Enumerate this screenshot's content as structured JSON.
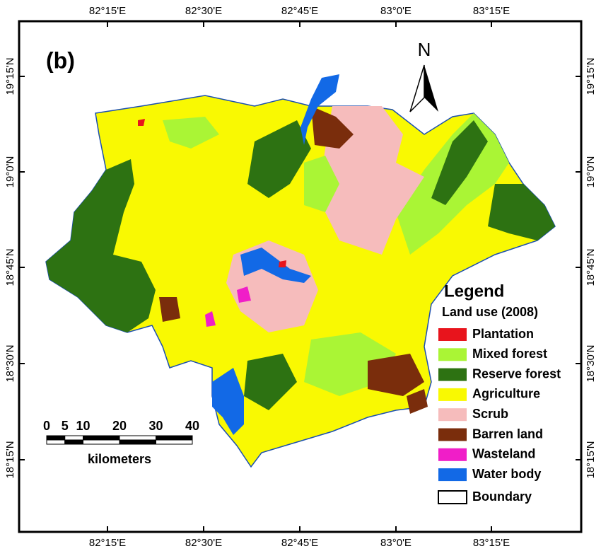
{
  "map": {
    "panel_label": "(b)",
    "north_label": "N",
    "lon_labels": [
      "82°15'E",
      "82°30'E",
      "82°45'E",
      "83°0'E",
      "83°15'E"
    ],
    "lat_labels": [
      "19°15'N",
      "19°0'N",
      "18°45'N",
      "18°30'N",
      "18°15'N"
    ],
    "legend": {
      "title": "Legend",
      "subtitle": "Land use (2008)",
      "items": [
        {
          "label": "Plantation",
          "color": "#e8141c"
        },
        {
          "label": "Mixed forest",
          "color": "#aaf535"
        },
        {
          "label": "Reserve forest",
          "color": "#2d7212"
        },
        {
          "label": "Agriculture",
          "color": "#f9f902"
        },
        {
          "label": "Scrub",
          "color": "#f6bcbc"
        },
        {
          "label": "Barren land",
          "color": "#7a2d0c"
        },
        {
          "label": "Wasteland",
          "color": "#f01ec8"
        },
        {
          "label": "Water body",
          "color": "#1269e6"
        },
        {
          "label": "Boundary",
          "color": "#ffffff"
        }
      ]
    },
    "scale_bar": {
      "ticks": [
        0,
        5,
        10,
        20,
        30,
        40
      ],
      "unit": "kilometers"
    }
  }
}
